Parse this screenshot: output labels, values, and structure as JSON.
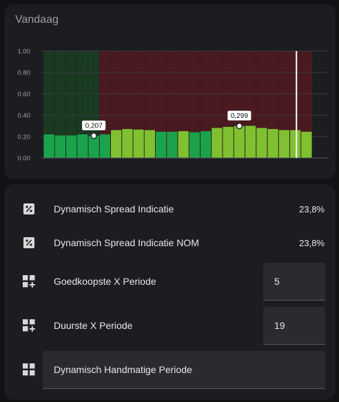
{
  "chart_card": {
    "title": "Vandaag"
  },
  "chart_data": {
    "type": "bar",
    "ylim": [
      0,
      1
    ],
    "yticks": [
      "1.00",
      "0.80",
      "0.60",
      "0.40",
      "0.20",
      "0.00"
    ],
    "values": [
      0.22,
      0.21,
      0.21,
      0.22,
      0.207,
      0.22,
      0.26,
      0.27,
      0.265,
      0.26,
      0.245,
      0.245,
      0.25,
      0.24,
      0.25,
      0.28,
      0.29,
      0.299,
      0.3,
      0.28,
      0.27,
      0.26,
      0.26,
      0.245
    ],
    "cheap_hours": [
      0,
      1,
      2,
      3,
      4,
      5,
      10,
      11,
      13,
      14
    ],
    "cheap_window_hours": 5,
    "now_hour": 22.6,
    "annotations": [
      {
        "index": 4,
        "label": "0,207"
      },
      {
        "index": 17,
        "label": "0,299"
      }
    ],
    "colors": {
      "cheap_bar": "#1aa34a",
      "expensive_bar": "#7fc131",
      "cheap_bg": "#1a3a22",
      "expensive_bg": "#4a1a20",
      "now_line": "#ffffff"
    }
  },
  "entities": [
    {
      "icon": "percent-box-icon",
      "label": "Dynamisch Spread Indicatie",
      "value": "23,8%"
    },
    {
      "icon": "percent-box-icon",
      "label": "Dynamisch Spread Indicatie NOM",
      "value": "23,8%"
    },
    {
      "icon": "grid-plus-icon",
      "label": "Goedkoopste X Periode",
      "value": "5"
    },
    {
      "icon": "grid-plus-icon",
      "label": "Duurste X Periode",
      "value": "19"
    },
    {
      "icon": "grid-icon",
      "label": "Dynamisch Handmatige Periode",
      "value": ""
    }
  ]
}
